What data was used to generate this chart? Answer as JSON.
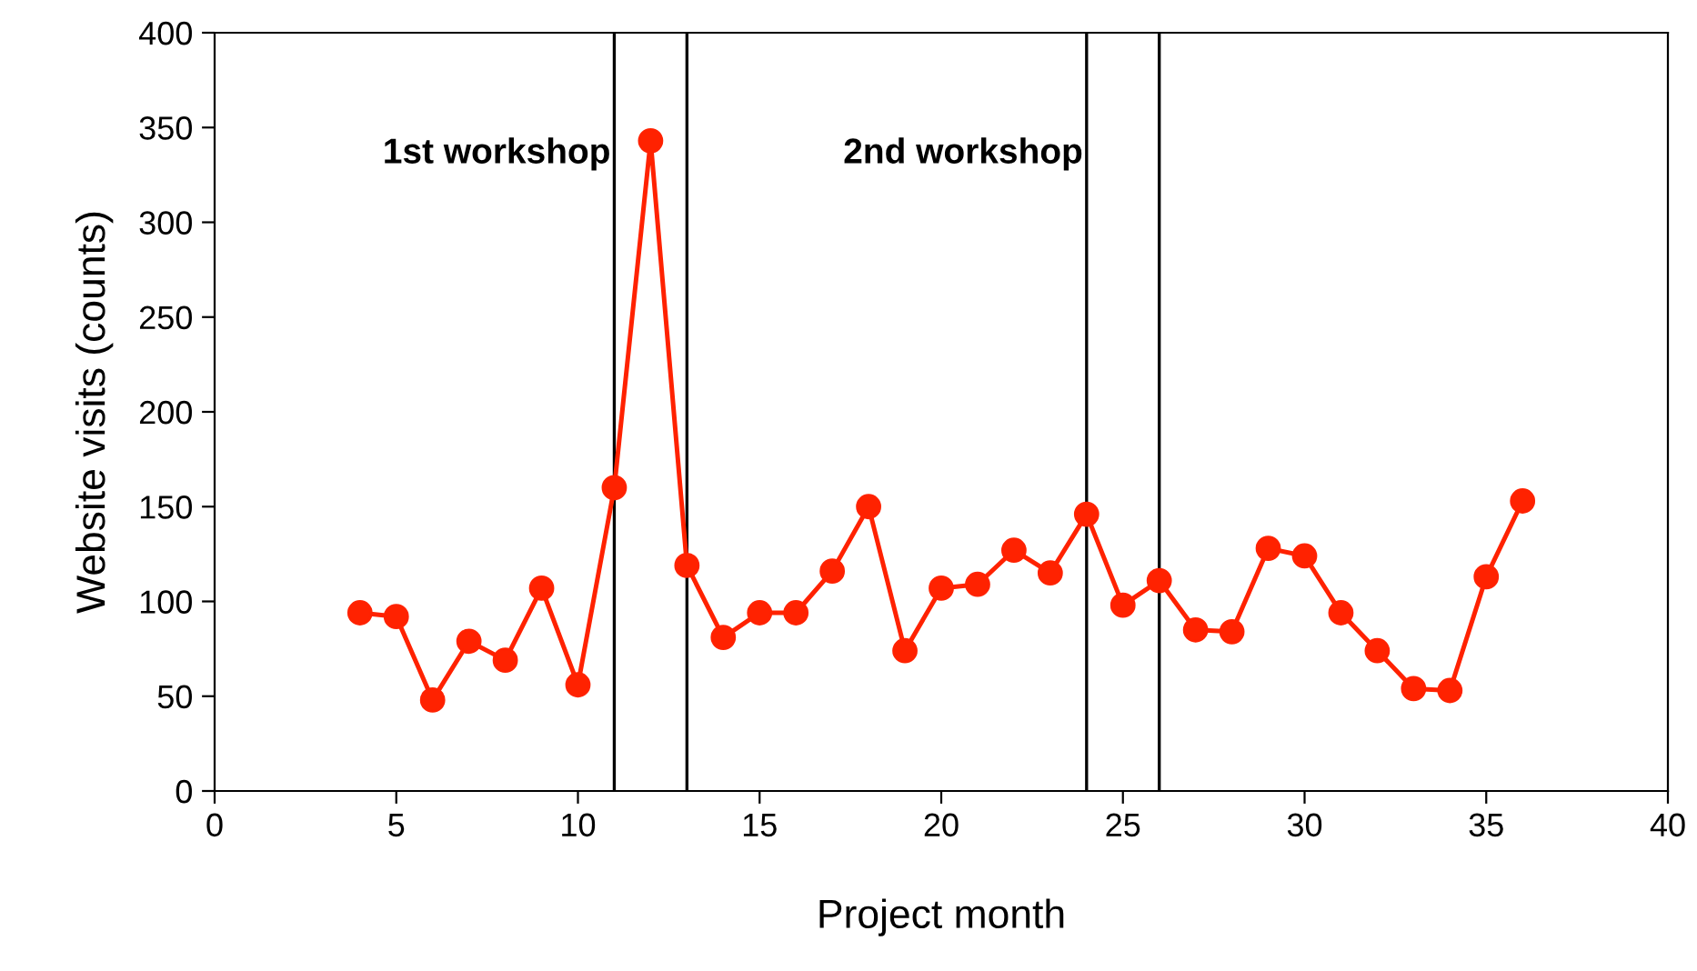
{
  "chart_data": {
    "type": "line",
    "xlabel": "Project month",
    "ylabel": "Website visits (counts)",
    "x": [
      4,
      5,
      6,
      7,
      8,
      9,
      10,
      11,
      12,
      13,
      14,
      15,
      16,
      17,
      18,
      19,
      20,
      21,
      22,
      23,
      24,
      25,
      26,
      27,
      28,
      29,
      30,
      31,
      32,
      33,
      34,
      35,
      36
    ],
    "series": [
      {
        "color": "#ff2200",
        "values": [
          94,
          92,
          48,
          79,
          69,
          107,
          56,
          160,
          343,
          119,
          81,
          94,
          94,
          116,
          150,
          74,
          107,
          109,
          127,
          115,
          146,
          98,
          111,
          85,
          84,
          128,
          124,
          94,
          74,
          54,
          53,
          113,
          153
        ]
      }
    ],
    "marker": "circle",
    "line_style": "solid",
    "xlim": [
      0,
      40
    ],
    "xticks": [
      0,
      5,
      10,
      15,
      20,
      25,
      30,
      35,
      40
    ],
    "ylim": [
      0,
      400
    ],
    "yticks": [
      0,
      50,
      100,
      150,
      200,
      250,
      300,
      350,
      400
    ],
    "ref_lines": [
      {
        "axis": "x",
        "value": 11,
        "label": "1st workshop",
        "color": "#000000"
      },
      {
        "axis": "x",
        "value": 13,
        "color": "#000000"
      },
      {
        "axis": "x",
        "value": 24,
        "label": "2nd workshop",
        "color": "#000000"
      },
      {
        "axis": "x",
        "value": 26,
        "color": "#000000"
      }
    ],
    "grid": false,
    "legend": false
  }
}
